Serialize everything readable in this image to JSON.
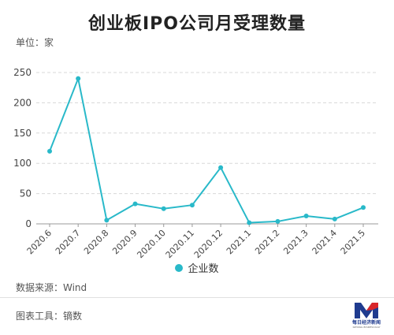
{
  "page": {
    "title": "创业板IPO公司月受理数量",
    "unit": "单位：家",
    "source": "数据来源：Wind",
    "tool": "图表工具：镝数",
    "logo_text": "每日经济新闻",
    "logo_subtext": "NATIONAL BUSINESS DAILY"
  },
  "colors": {
    "line": "#29b9c9",
    "axis": "#999999",
    "grid": "#d8d8d8"
  },
  "chart_data": {
    "type": "line",
    "categories": [
      "2020.6",
      "2020.7",
      "2020.8",
      "2020.9",
      "2020.10",
      "2020.11",
      "2020.12",
      "2021.1",
      "2021.2",
      "2021.3",
      "2021.4",
      "2021.5"
    ],
    "series": [
      {
        "name": "企业数",
        "values": [
          120,
          240,
          6,
          33,
          25,
          31,
          93,
          2,
          4,
          13,
          8,
          27
        ]
      }
    ],
    "yticks": [
      0,
      50,
      100,
      150,
      200,
      250
    ],
    "ylim": [
      0,
      250
    ],
    "grid": true,
    "legend": "bottom"
  }
}
